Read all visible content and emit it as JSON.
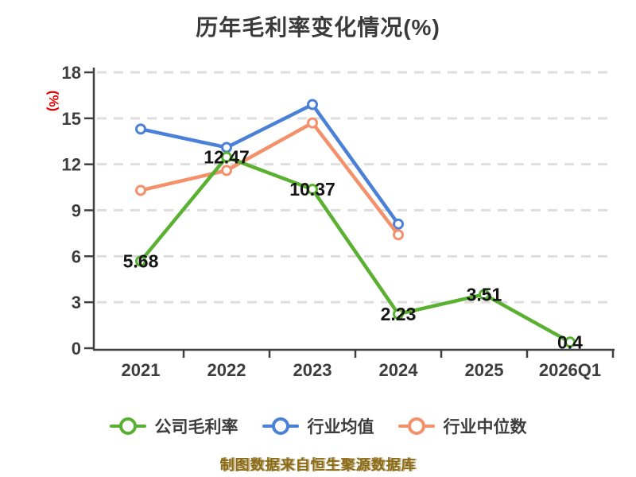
{
  "chart_data": {
    "type": "line",
    "title": "历年毛利率变化情况(%)",
    "ylabel": "(%)",
    "xlabel": "",
    "categories": [
      "2021",
      "2022",
      "2023",
      "2024",
      "2025",
      "2026Q1"
    ],
    "ylim": [
      0,
      18
    ],
    "yticks": [
      0,
      3,
      6,
      9,
      12,
      15,
      18
    ],
    "grid": "dashed-horizontal",
    "legend_position": "bottom",
    "series": [
      {
        "key": "company-gross-margin",
        "name": "公司毛利率",
        "color": "#5ab031",
        "values": [
          5.68,
          12.47,
          10.37,
          2.23,
          3.51,
          0.4
        ],
        "point_labels": [
          "5.68",
          "12.47",
          "10.37",
          "2.23",
          "3.51",
          "0.4"
        ]
      },
      {
        "key": "industry-average",
        "name": "行业均值",
        "color": "#4b80d9",
        "values": [
          14.3,
          13.1,
          15.9,
          8.1,
          null,
          null
        ]
      },
      {
        "key": "industry-median",
        "name": "行业中位数",
        "color": "#f4906a",
        "values": [
          10.3,
          11.6,
          14.7,
          7.4,
          null,
          null
        ]
      }
    ],
    "colors": {
      "title": "#3a3a3a",
      "axis": "#3f3f3f",
      "tick_label": "#3d3d3d",
      "grid": "#dedede",
      "ylabel": "#e60000",
      "data_label": "#151515",
      "source_note": "#8a6c1a"
    }
  },
  "footer": {
    "source_note": "制图数据来自恒生聚源数据库"
  }
}
